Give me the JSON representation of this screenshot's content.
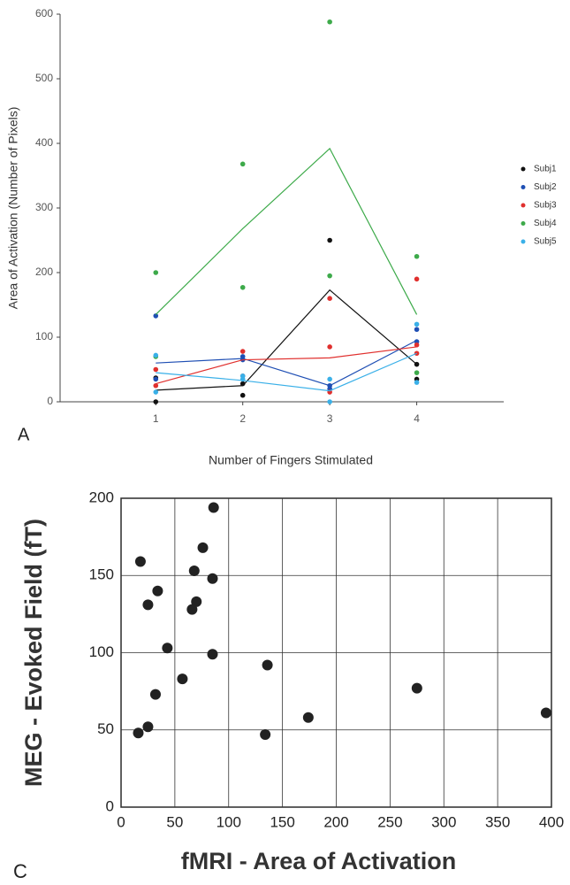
{
  "chart_data": [
    {
      "type": "line",
      "panel_label": "A",
      "y_label": "Area of Activation (Number of Pixels)",
      "x_label": "Number of Fingers Stimulated",
      "x": [
        1,
        2,
        3,
        4
      ],
      "xlim": [
        -0.1,
        5
      ],
      "xticks": [
        1,
        2,
        3,
        4
      ],
      "ylim": [
        0,
        600
      ],
      "yticks": [
        0,
        100,
        200,
        300,
        400,
        500,
        600
      ],
      "grid": false,
      "legend": "right",
      "series": [
        {
          "name": "Subj1",
          "color": "#111111",
          "values": [
            18,
            25,
            173,
            58
          ],
          "points_x": [
            1,
            1,
            2,
            2,
            3,
            4,
            4
          ],
          "points_y": [
            0,
            37,
            10,
            28,
            250,
            58,
            35
          ]
        },
        {
          "name": "Subj2",
          "color": "#1f4fb4",
          "values": [
            60,
            67,
            25,
            95
          ],
          "points_x": [
            1,
            1,
            2,
            2,
            3,
            3,
            4,
            4
          ],
          "points_y": [
            133,
            35,
            65,
            70,
            25,
            20,
            112,
            93
          ]
        },
        {
          "name": "Subj3",
          "color": "#e0302e",
          "values": [
            28,
            65,
            68,
            85
          ],
          "points_x": [
            1,
            1,
            2,
            2,
            3,
            3,
            3,
            4,
            4,
            4
          ],
          "points_y": [
            50,
            25,
            78,
            40,
            160,
            85,
            15,
            190,
            88,
            75
          ]
        },
        {
          "name": "Subj4",
          "color": "#3daa4a",
          "values": [
            135,
            268,
            392,
            135
          ],
          "points_x": [
            1,
            1,
            2,
            2,
            3,
            3,
            4,
            4
          ],
          "points_y": [
            200,
            70,
            368,
            177,
            588,
            195,
            225,
            45
          ]
        },
        {
          "name": "Subj5",
          "color": "#3ab0e8",
          "values": [
            45,
            33,
            17,
            75
          ],
          "points_x": [
            1,
            1,
            2,
            2,
            3,
            3,
            4,
            4
          ],
          "points_y": [
            72,
            15,
            40,
            35,
            35,
            0,
            120,
            30
          ]
        }
      ]
    },
    {
      "type": "scatter",
      "panel_label": "C",
      "y_label": "MEG - Evoked Field (fT)",
      "x_label": "fMRI - Area of Activation",
      "color": "#222222",
      "x": [
        86,
        76,
        18,
        68,
        85,
        34,
        70,
        25,
        66,
        43,
        85,
        136,
        57,
        32,
        275,
        174,
        395,
        25,
        16,
        134
      ],
      "values": [
        194,
        168,
        159,
        153,
        148,
        140,
        133,
        131,
        128,
        103,
        99,
        92,
        83,
        73,
        77,
        58,
        61,
        52,
        48,
        47
      ],
      "xlim": [
        0,
        400
      ],
      "xticks": [
        0,
        50,
        100,
        150,
        200,
        250,
        300,
        350,
        400
      ],
      "ylim": [
        0,
        200
      ],
      "yticks": [
        0,
        50,
        100,
        150,
        200
      ],
      "grid": true
    }
  ]
}
